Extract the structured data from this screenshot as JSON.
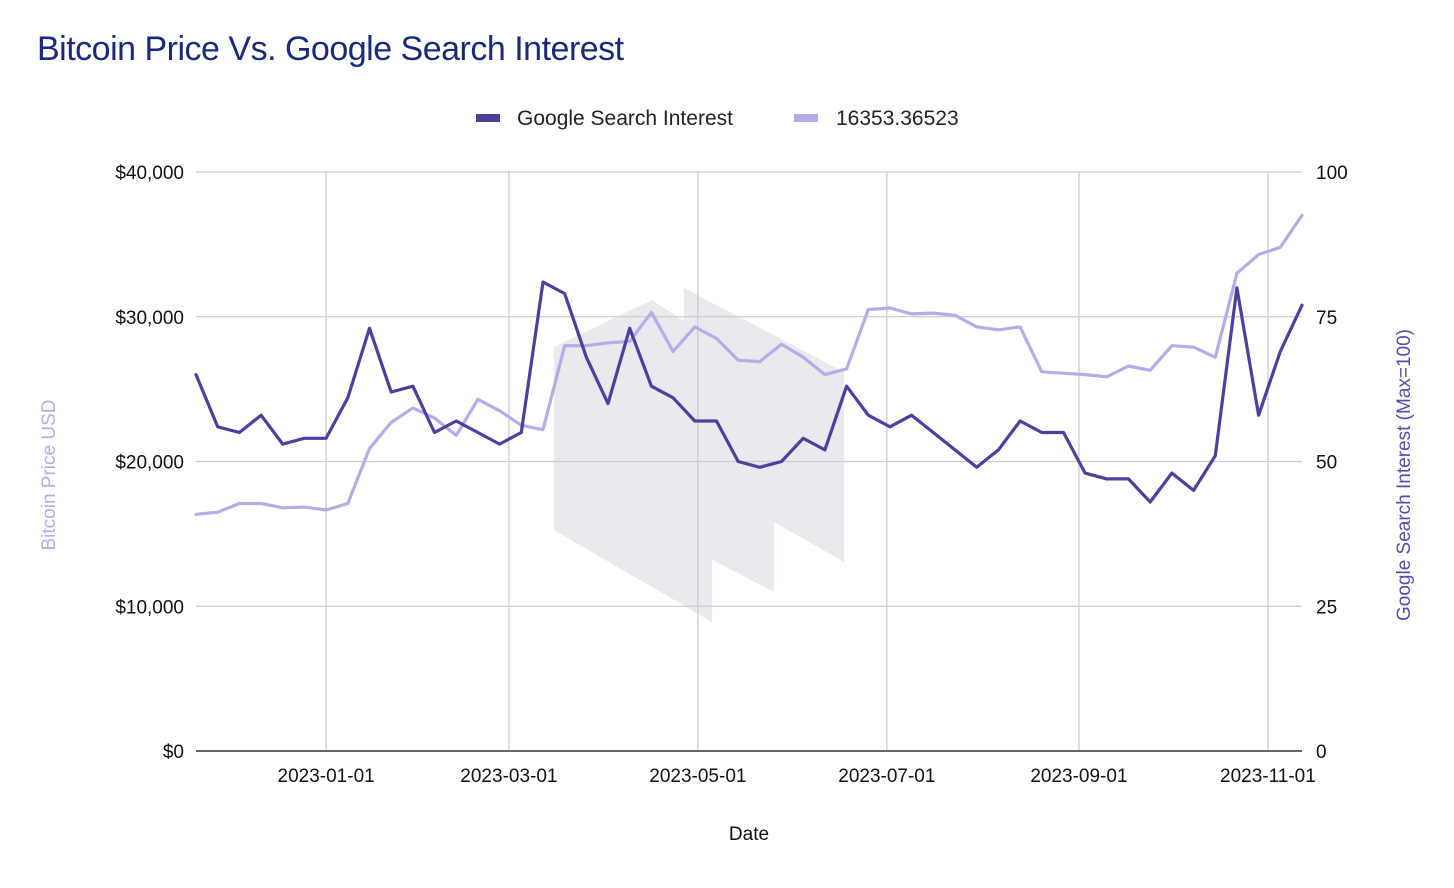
{
  "colors": {
    "title": "#1a2a7a",
    "search_series": "#4e3f9c",
    "price_series": "#b3aee8",
    "gridline": "#cccccc",
    "axis": "#333333",
    "left_axis_title": "#b3aee8",
    "right_axis_title": "#5a4aa8",
    "watermark": "#e9e9ee"
  },
  "chart_data": {
    "type": "line",
    "title": "Bitcoin Price Vs. Google Search Interest",
    "xlabel": "Date",
    "ylabel_left": "Bitcoin Price USD",
    "ylabel_right": "Google Search Interest (Max=100)",
    "ylim_left": [
      0,
      40000
    ],
    "ylim_right": [
      0,
      100
    ],
    "xlim": [
      "2022-11-20",
      "2023-11-12"
    ],
    "y_ticks_left": [
      "$0",
      "$10,000",
      "$20,000",
      "$30,000",
      "$40,000"
    ],
    "y_ticks_right": [
      "0",
      "25",
      "50",
      "75",
      "100"
    ],
    "x_ticks": [
      "2023-01-01",
      "2023-03-01",
      "2023-05-01",
      "2023-07-01",
      "2023-09-01",
      "2023-11-01"
    ],
    "grid": true,
    "legend_position": "top",
    "series": [
      {
        "name": "Google Search Interest",
        "axis": "right",
        "x": [
          "2022-11-20",
          "2022-11-27",
          "2022-12-04",
          "2022-12-11",
          "2022-12-18",
          "2022-12-25",
          "2023-01-01",
          "2023-01-08",
          "2023-01-15",
          "2023-01-22",
          "2023-01-29",
          "2023-02-05",
          "2023-02-12",
          "2023-02-19",
          "2023-02-26",
          "2023-03-05",
          "2023-03-12",
          "2023-03-19",
          "2023-03-26",
          "2023-04-02",
          "2023-04-09",
          "2023-04-16",
          "2023-04-23",
          "2023-04-30",
          "2023-05-07",
          "2023-05-14",
          "2023-05-21",
          "2023-05-28",
          "2023-06-04",
          "2023-06-11",
          "2023-06-18",
          "2023-06-25",
          "2023-07-02",
          "2023-07-09",
          "2023-07-16",
          "2023-07-23",
          "2023-07-30",
          "2023-08-06",
          "2023-08-13",
          "2023-08-20",
          "2023-08-27",
          "2023-09-03",
          "2023-09-10",
          "2023-09-17",
          "2023-09-24",
          "2023-10-01",
          "2023-10-08",
          "2023-10-15",
          "2023-10-22",
          "2023-10-29",
          "2023-11-05",
          "2023-11-12"
        ],
        "values": [
          65,
          56,
          55,
          58,
          53,
          54,
          54,
          61,
          73,
          62,
          63,
          55,
          57,
          55,
          53,
          55,
          81,
          79,
          68,
          60,
          73,
          63,
          61,
          57,
          57,
          50,
          49,
          50,
          54,
          52,
          63,
          58,
          56,
          58,
          55,
          52,
          49,
          52,
          57,
          55,
          55,
          48,
          47,
          47,
          43,
          48,
          45,
          51,
          80,
          58,
          69,
          77
        ]
      },
      {
        "name": "16353.36523",
        "axis": "left",
        "x": [
          "2022-11-20",
          "2022-11-27",
          "2022-12-04",
          "2022-12-11",
          "2022-12-18",
          "2022-12-25",
          "2023-01-01",
          "2023-01-08",
          "2023-01-15",
          "2023-01-22",
          "2023-01-29",
          "2023-02-05",
          "2023-02-12",
          "2023-02-19",
          "2023-02-26",
          "2023-03-05",
          "2023-03-12",
          "2023-03-19",
          "2023-03-26",
          "2023-04-02",
          "2023-04-09",
          "2023-04-16",
          "2023-04-23",
          "2023-04-30",
          "2023-05-07",
          "2023-05-14",
          "2023-05-21",
          "2023-05-28",
          "2023-06-04",
          "2023-06-11",
          "2023-06-18",
          "2023-06-25",
          "2023-07-02",
          "2023-07-09",
          "2023-07-16",
          "2023-07-23",
          "2023-07-30",
          "2023-08-06",
          "2023-08-13",
          "2023-08-20",
          "2023-08-27",
          "2023-09-03",
          "2023-09-10",
          "2023-09-17",
          "2023-09-24",
          "2023-10-01",
          "2023-10-08",
          "2023-10-15",
          "2023-10-22",
          "2023-10-29",
          "2023-11-05",
          "2023-11-12"
        ],
        "values": [
          16353,
          16500,
          17100,
          17100,
          16800,
          16850,
          16650,
          17100,
          20900,
          22700,
          23700,
          23000,
          21800,
          24300,
          23500,
          22500,
          22200,
          28000,
          28000,
          28200,
          28300,
          30300,
          27600,
          29300,
          28500,
          27000,
          26900,
          28100,
          27200,
          26000,
          26400,
          30500,
          30600,
          30200,
          30250,
          30100,
          29300,
          29100,
          29300,
          26200,
          26100,
          26000,
          25850,
          26600,
          26300,
          28000,
          27900,
          27200,
          33000,
          34300,
          34800,
          37000
        ]
      }
    ]
  }
}
